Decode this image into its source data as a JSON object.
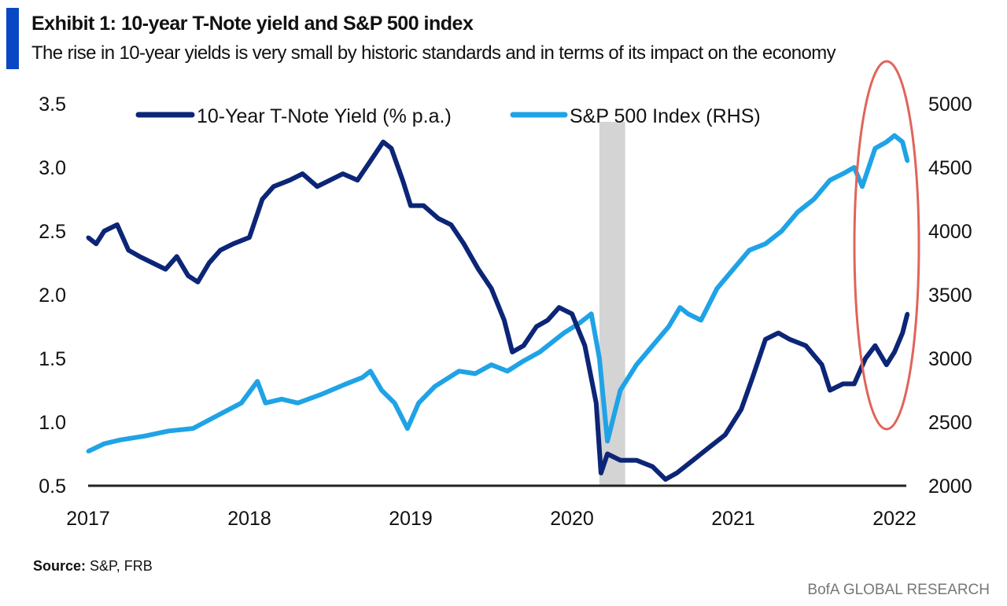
{
  "header": {
    "title": "Exhibit 1: 10-year T-Note yield and S&P 500 index",
    "subtitle": "The rise in 10-year yields is very small by historic standards and in terms of its impact on the economy"
  },
  "footer": {
    "source_label": "Source:",
    "source_text": "S&P, FRB",
    "brand": "BofA GLOBAL RESEARCH"
  },
  "chart_data": {
    "type": "line",
    "title": "10-year T-Note yield and S&P 500 index",
    "xlim": [
      2017,
      2022.2
    ],
    "x_ticks": [
      "2017",
      "2018",
      "2019",
      "2020",
      "2021",
      "2022"
    ],
    "ylim_left": [
      0.5,
      3.5
    ],
    "y_ticks_left": [
      "3.5",
      "3.0",
      "2.5",
      "2.0",
      "1.5",
      "1.0",
      "0.5"
    ],
    "ylim_right": [
      2000,
      5000
    ],
    "y_ticks_right": [
      "5000",
      "4500",
      "4000",
      "3500",
      "3000",
      "2500",
      "2000"
    ],
    "legend_position": "top",
    "recession_shade": [
      2020.17,
      2020.33
    ],
    "highlight": "late 2021 to 2022",
    "series": [
      {
        "name": "10-Year T-Note Yield (% p.a.)",
        "axis": "left",
        "color": "#0c2577",
        "x": [
          2017.0,
          2017.05,
          2017.1,
          2017.18,
          2017.25,
          2017.32,
          2017.4,
          2017.48,
          2017.55,
          2017.62,
          2017.68,
          2017.75,
          2017.82,
          2017.9,
          2018.0,
          2018.08,
          2018.15,
          2018.25,
          2018.33,
          2018.42,
          2018.5,
          2018.58,
          2018.67,
          2018.75,
          2018.83,
          2018.88,
          2018.95,
          2019.0,
          2019.08,
          2019.17,
          2019.25,
          2019.33,
          2019.42,
          2019.5,
          2019.58,
          2019.63,
          2019.7,
          2019.78,
          2019.85,
          2019.92,
          2020.0,
          2020.08,
          2020.15,
          2020.18,
          2020.22,
          2020.3,
          2020.4,
          2020.5,
          2020.58,
          2020.65,
          2020.75,
          2020.85,
          2020.95,
          2021.05,
          2021.12,
          2021.2,
          2021.28,
          2021.35,
          2021.45,
          2021.55,
          2021.6,
          2021.68,
          2021.75,
          2021.82,
          2021.88,
          2021.95,
          2022.0,
          2022.05,
          2022.08
        ],
        "y": [
          2.45,
          2.4,
          2.5,
          2.55,
          2.35,
          2.3,
          2.25,
          2.2,
          2.3,
          2.15,
          2.1,
          2.25,
          2.35,
          2.4,
          2.45,
          2.75,
          2.85,
          2.9,
          2.95,
          2.85,
          2.9,
          2.95,
          2.9,
          3.05,
          3.2,
          3.15,
          2.9,
          2.7,
          2.7,
          2.6,
          2.55,
          2.4,
          2.2,
          2.05,
          1.8,
          1.55,
          1.6,
          1.75,
          1.8,
          1.9,
          1.85,
          1.6,
          1.15,
          0.6,
          0.75,
          0.7,
          0.7,
          0.65,
          0.55,
          0.6,
          0.7,
          0.8,
          0.9,
          1.1,
          1.35,
          1.65,
          1.7,
          1.65,
          1.6,
          1.45,
          1.25,
          1.3,
          1.3,
          1.5,
          1.6,
          1.45,
          1.55,
          1.7,
          1.85
        ]
      },
      {
        "name": "S&P 500 Index (RHS)",
        "axis": "right",
        "color": "#1fa3e6",
        "x": [
          2017.0,
          2017.1,
          2017.2,
          2017.35,
          2017.5,
          2017.65,
          2017.8,
          2017.95,
          2018.05,
          2018.1,
          2018.2,
          2018.3,
          2018.45,
          2018.6,
          2018.7,
          2018.75,
          2018.82,
          2018.9,
          2018.98,
          2019.05,
          2019.15,
          2019.3,
          2019.4,
          2019.5,
          2019.6,
          2019.7,
          2019.8,
          2019.95,
          2020.05,
          2020.12,
          2020.17,
          2020.22,
          2020.3,
          2020.4,
          2020.5,
          2020.6,
          2020.67,
          2020.72,
          2020.8,
          2020.9,
          2021.0,
          2021.1,
          2021.2,
          2021.3,
          2021.4,
          2021.5,
          2021.6,
          2021.68,
          2021.75,
          2021.8,
          2021.88,
          2021.95,
          2022.0,
          2022.05,
          2022.08
        ],
        "y": [
          2270,
          2330,
          2360,
          2390,
          2430,
          2450,
          2550,
          2650,
          2820,
          2650,
          2680,
          2650,
          2720,
          2800,
          2850,
          2900,
          2750,
          2650,
          2450,
          2650,
          2780,
          2900,
          2880,
          2950,
          2900,
          2980,
          3050,
          3200,
          3280,
          3350,
          3000,
          2350,
          2750,
          2950,
          3100,
          3250,
          3400,
          3350,
          3300,
          3550,
          3700,
          3850,
          3900,
          4000,
          4150,
          4250,
          4400,
          4450,
          4500,
          4350,
          4650,
          4700,
          4750,
          4700,
          4550
        ]
      }
    ]
  }
}
